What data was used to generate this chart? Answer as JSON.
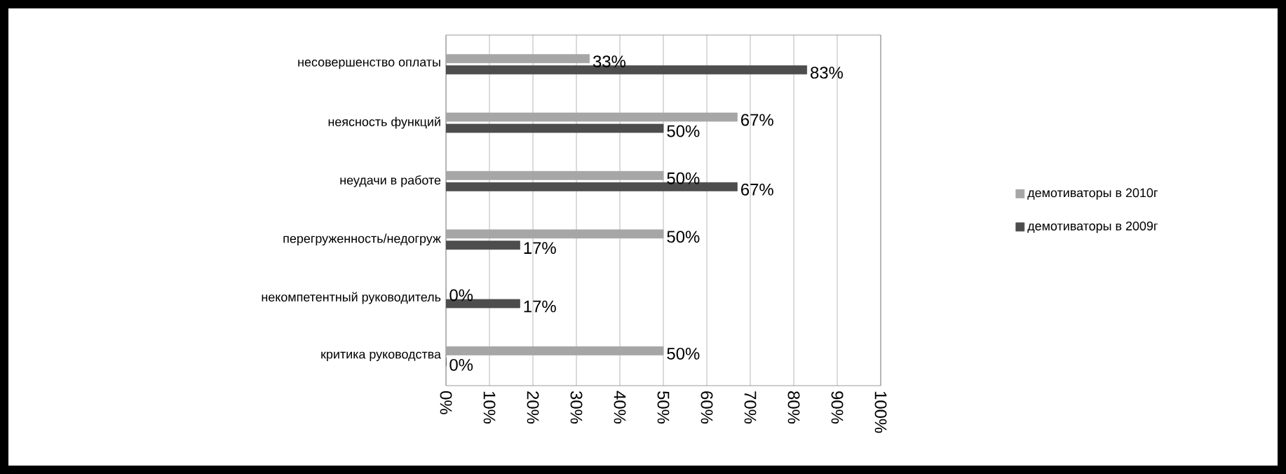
{
  "chart_data": {
    "type": "bar",
    "orientation": "horizontal",
    "categories": [
      "несовершенство оплаты",
      "неясность функций",
      "неудачи в работе",
      "перегруженность/недогруж",
      "некомпетентный руководитель",
      "критика руководства"
    ],
    "series": [
      {
        "name": "демотиваторы в 2010г",
        "color": "#a6a6a6",
        "values": [
          33,
          67,
          50,
          50,
          0,
          50
        ],
        "value_labels": [
          "33%",
          "67%",
          "50%",
          "50%",
          "0%",
          "50%"
        ]
      },
      {
        "name": "демотиваторы в 2009г",
        "color": "#4d4d4d",
        "values": [
          83,
          50,
          67,
          17,
          17,
          0
        ],
        "value_labels": [
          "83%",
          "50%",
          "67%",
          "17%",
          "17%",
          "0%"
        ]
      }
    ],
    "xlim": [
      0,
      100
    ],
    "xticks": [
      {
        "value": 0,
        "label": "0%"
      },
      {
        "value": 10,
        "label": "10%"
      },
      {
        "value": 20,
        "label": "20%"
      },
      {
        "value": 30,
        "label": "30%"
      },
      {
        "value": 40,
        "label": "40%"
      },
      {
        "value": 50,
        "label": "50%"
      },
      {
        "value": 60,
        "label": "60%"
      },
      {
        "value": 70,
        "label": "70%"
      },
      {
        "value": 80,
        "label": "80%"
      },
      {
        "value": 90,
        "label": "90%"
      },
      {
        "value": 100,
        "label": "100%"
      }
    ],
    "grid": "x",
    "legend": "right"
  }
}
